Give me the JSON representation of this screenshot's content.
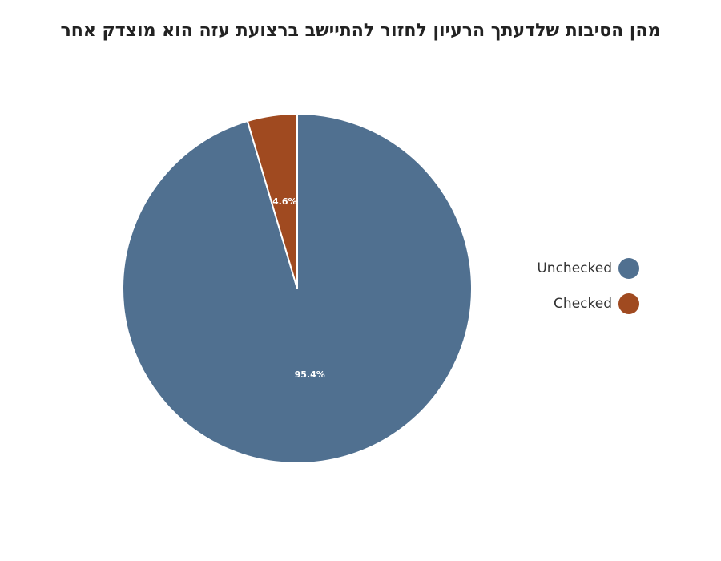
{
  "chart_data": {
    "type": "pie",
    "title": "מהן הסיבות שלדעתך הרעיון לחזור להתיישב ברצועת עזה הוא מוצדק אחר",
    "categories": [
      "Unchecked",
      "Checked"
    ],
    "values": [
      95.4,
      4.6
    ],
    "labels": [
      "95.4%",
      "4.6%"
    ],
    "colors": [
      "#507090",
      "#A04A20"
    ],
    "legend_position": "right"
  }
}
